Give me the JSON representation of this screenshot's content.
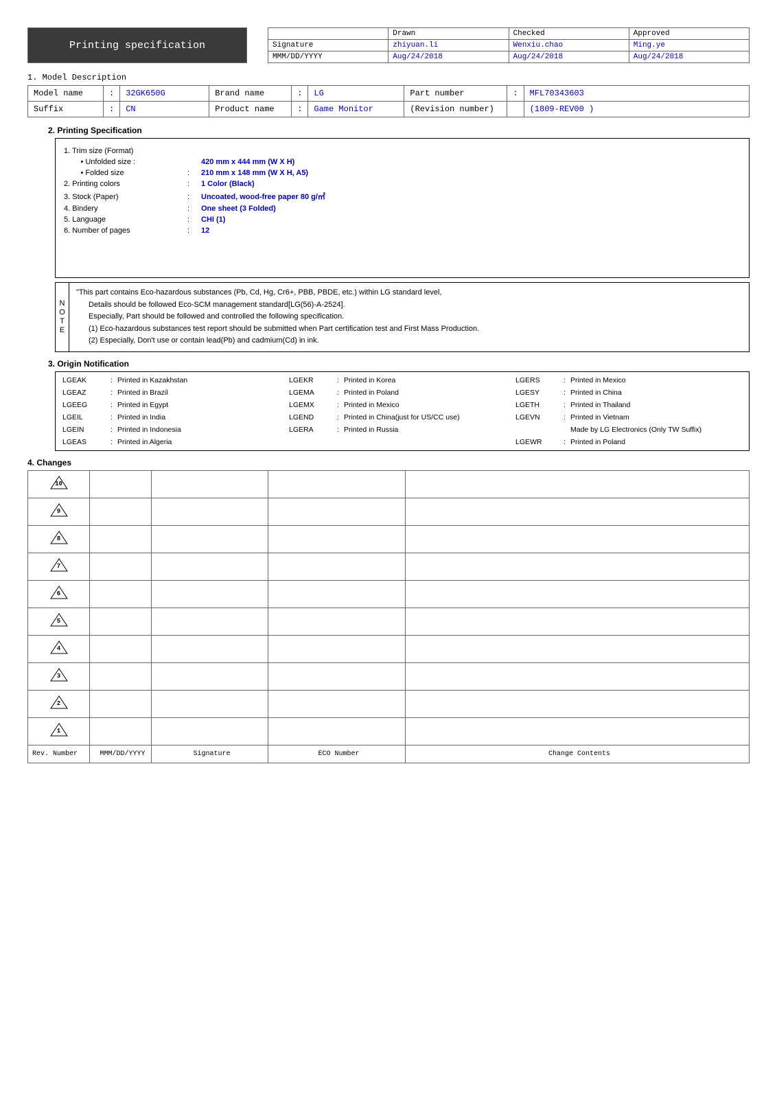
{
  "header": {
    "title": "Printing specification",
    "sig_table": {
      "cols": [
        "",
        "Drawn",
        "Checked",
        "Approved"
      ],
      "rows": [
        {
          "label": "Signature",
          "vals": [
            "zhiyuan.li",
            "Wenxiu.chao",
            "Ming.ye"
          ]
        },
        {
          "label": "MMM/DD/YYYY",
          "vals": [
            "Aug/24/2018",
            "Aug/24/2018",
            "Aug/24/2018"
          ]
        }
      ]
    }
  },
  "model_desc": {
    "heading": "1. Model Description",
    "rows": [
      [
        "Model name",
        ":",
        "32GK650G",
        "Brand name",
        ":",
        "LG",
        "Part number",
        ":",
        "MFL70343603"
      ],
      [
        "Suffix",
        ":",
        "CN",
        "Product name",
        ":",
        "Game Monitor",
        "(Revision number)",
        "",
        "(1809-REV00 )"
      ]
    ]
  },
  "printing_spec": {
    "heading": "2. Printing Specification",
    "items": [
      {
        "label": "1. Trim size (Format)",
        "sep": "",
        "val": ""
      },
      {
        "label": "        • Unfolded size :",
        "sep": "",
        "val": "420 mm x 444 mm (W X H)"
      },
      {
        "label": "        • Folded size",
        "sep": ":",
        "val": "210 mm x 148 mm (W X H, A5)"
      },
      {
        "label": "2. Printing colors",
        "sep": ":",
        "val": "1 Color (Black)"
      },
      {
        "label": "3. Stock (Paper)",
        "sep": ":",
        "val": "Uncoated, wood-free paper 80 g/㎡"
      },
      {
        "label": "4. Bindery",
        "sep": ":",
        "val": "One sheet (3 Folded)"
      },
      {
        "label": "5. Language",
        "sep": ":",
        "val": "CHI (1)"
      },
      {
        "label": "6. Number of pages",
        "sep": ":",
        "val": "12"
      }
    ]
  },
  "note": {
    "side": "NOTE",
    "lines": [
      "\"This part contains Eco-hazardous substances (Pb, Cd, Hg, Cr6+, PBB, PBDE, etc.) within LG standard level,",
      "Details should be followed Eco-SCM management standard[LG(56)-A-2524].",
      "Especially, Part should be followed and controlled the following specification.",
      "(1) Eco-hazardous substances test report should be submitted when Part certification test and First Mass Production.",
      "(2) Especially, Don't use or contain lead(Pb) and cadmium(Cd) in ink."
    ]
  },
  "origin": {
    "heading": "3. Origin Notification",
    "entries": [
      [
        "LGEAK",
        "Printed in Kazakhstan",
        "LGEKR",
        "Printed in Korea",
        "LGERS",
        "Printed in Mexico"
      ],
      [
        "LGEAZ",
        "Printed in Brazil",
        "LGEMA",
        "Printed in Poland",
        "LGESY",
        "Printed in China"
      ],
      [
        "LGEEG",
        "Printed in Egypt",
        "LGEMX",
        "Printed in Mexico",
        "LGETH",
        "Printed in Thailand"
      ],
      [
        "LGEIL",
        "Printed in India",
        "LGEND",
        "Printed in China(just for US/CC use)",
        "LGEVN",
        "Printed in Vietnam"
      ],
      [
        "LGEIN",
        "Printed in Indonesia",
        "LGERA",
        "Printed in Russia",
        "",
        "Made by LG Electronics (Only TW Suffix)"
      ],
      [
        "LGEAS",
        "Printed in Algeria",
        "",
        "",
        "LGEWR",
        "Printed in Poland"
      ]
    ]
  },
  "changes": {
    "heading": "4. Changes",
    "revs": [
      "10",
      "9",
      "8",
      "7",
      "6",
      "5",
      "4",
      "3",
      "2",
      "1"
    ],
    "header": [
      "Rev. Number",
      "MMM/DD/YYYY",
      "Signature",
      "ECO Number",
      "Change Contents"
    ]
  },
  "style": {
    "blue": "#0000cc",
    "bg": "#ffffff",
    "title_bg": "#3a3a3a",
    "border": "#666666"
  }
}
